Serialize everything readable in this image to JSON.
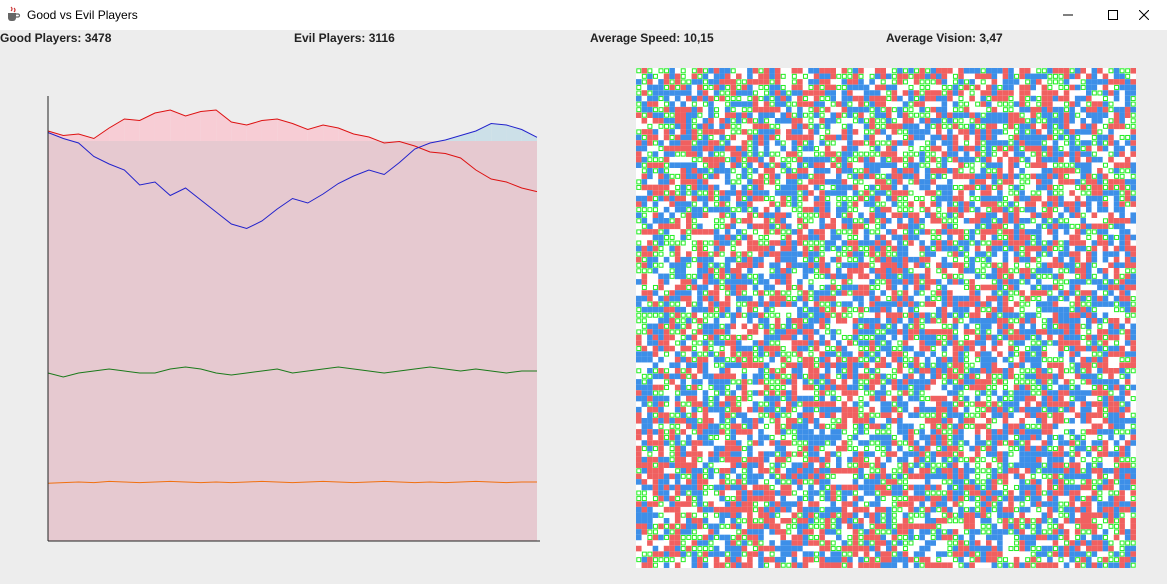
{
  "window": {
    "title": "Good vs Evil Players",
    "icons": {
      "app": "java-cup-icon",
      "minimize": "minimize-icon",
      "maximize": "maximize-icon",
      "close": "close-icon"
    }
  },
  "stats": {
    "good": "Good Players: 3478",
    "evil": "Evil Players: 3116",
    "speed": "Average Speed: 10,15",
    "vision": "Average Vision: 3,47"
  },
  "colors": {
    "good": "#2222cc",
    "evil": "#dd1111",
    "speed": "#1a7a1a",
    "vision": "#f07010",
    "good_fill": "#cce0e8",
    "evil_fill": "#f7cdd5",
    "area_fill": "#e6c9d0",
    "cell_good": "#3d8fe8",
    "cell_evil": "#f06060",
    "cell_food": "#22ee22",
    "cell_empty": "#ffffff"
  },
  "chart_data": {
    "type": "line",
    "title": "",
    "xlabel": "",
    "ylabel": "",
    "series": [
      {
        "key": "evil",
        "values": [
          3520,
          3490,
          3500,
          3470,
          3540,
          3600,
          3590,
          3640,
          3660,
          3620,
          3650,
          3660,
          3580,
          3560,
          3590,
          3600,
          3570,
          3530,
          3560,
          3540,
          3500,
          3480,
          3440,
          3450,
          3420,
          3380,
          3370,
          3340,
          3260,
          3200,
          3180,
          3140,
          3116
        ]
      },
      {
        "key": "good",
        "values": [
          3510,
          3470,
          3440,
          3350,
          3300,
          3260,
          3160,
          3180,
          3090,
          3140,
          3060,
          2980,
          2900,
          2870,
          2920,
          3000,
          3070,
          3040,
          3100,
          3170,
          3220,
          3260,
          3230,
          3310,
          3400,
          3440,
          3460,
          3490,
          3520,
          3570,
          3560,
          3530,
          3478
        ]
      },
      {
        "key": "speed",
        "values": [
          10.1,
          10.0,
          10.1,
          10.15,
          10.2,
          10.15,
          10.1,
          10.1,
          10.2,
          10.25,
          10.2,
          10.1,
          10.05,
          10.1,
          10.15,
          10.2,
          10.1,
          10.15,
          10.2,
          10.25,
          10.2,
          10.15,
          10.1,
          10.15,
          10.2,
          10.25,
          10.2,
          10.15,
          10.2,
          10.15,
          10.1,
          10.15,
          10.15
        ]
      },
      {
        "key": "vision",
        "values": [
          3.45,
          3.46,
          3.47,
          3.46,
          3.48,
          3.47,
          3.46,
          3.47,
          3.48,
          3.47,
          3.46,
          3.47,
          3.46,
          3.47,
          3.48,
          3.47,
          3.46,
          3.47,
          3.48,
          3.47,
          3.46,
          3.47,
          3.48,
          3.47,
          3.46,
          3.47,
          3.46,
          3.47,
          3.48,
          3.47,
          3.46,
          3.47,
          3.47
        ]
      }
    ]
  },
  "simulation_grid": {
    "cols": 90,
    "rows": 90,
    "legend_cells": [
      "good",
      "evil",
      "food",
      "empty"
    ]
  }
}
